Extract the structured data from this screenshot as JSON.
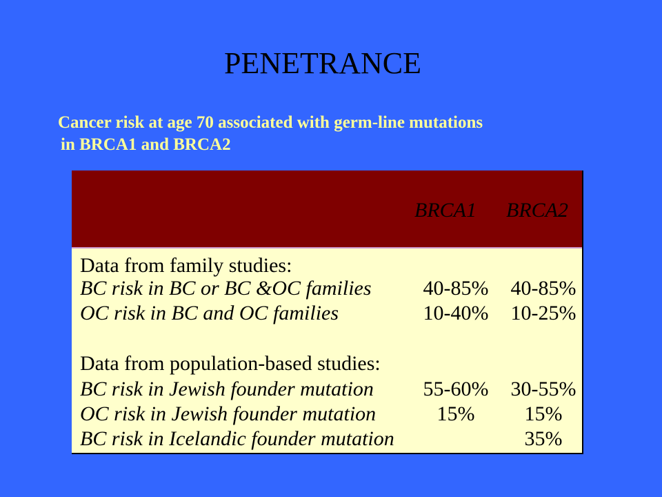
{
  "slide": {
    "title": "PENETRANCE",
    "subtitle_line1": "Cancer risk at age 70 associated with germ-line mutations",
    "subtitle_line2": "in BRCA1 and BRCA2"
  },
  "colors": {
    "background": "#3366ff",
    "subtitle": "#ffff99",
    "header": "#7f0000",
    "table_body": "#ffffcc"
  },
  "table": {
    "columns": [
      "BRCA1",
      "BRCA2"
    ],
    "rows": [
      {
        "label": "Data from family studies:",
        "brca1": "",
        "brca2": ""
      },
      {
        "label": "BC risk in BC or BC &OC families",
        "brca1": "40-85%",
        "brca2": "40-85%"
      },
      {
        "label": "OC risk in BC and OC families",
        "brca1": "10-40%",
        "brca2": "10-25%"
      },
      {
        "label": "Data from population-based studies:",
        "brca1": "",
        "brca2": ""
      },
      {
        "label": "BC risk in Jewish founder mutation",
        "brca1": "55-60%",
        "brca2": "30-55%"
      },
      {
        "label": "OC risk in Jewish founder mutation",
        "brca1": "15%",
        "brca2": "15%"
      },
      {
        "label": "BC risk in Icelandic founder mutation",
        "brca1": "",
        "brca2": "35%"
      }
    ]
  }
}
